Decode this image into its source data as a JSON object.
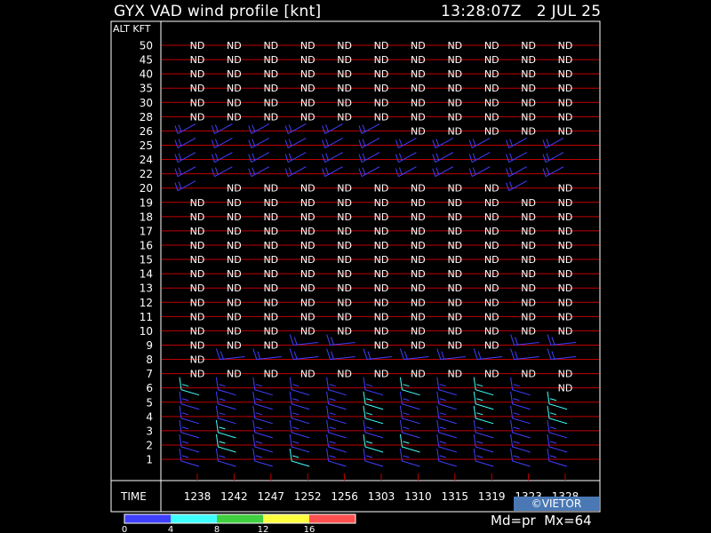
{
  "header": {
    "title": "GYX VAD wind profile [knt]",
    "timestamp": "13:28:07Z   2 JUL 25"
  },
  "footer": {
    "mode_label": "Md=pr  Mx=64",
    "watermark": "©VIETOR"
  },
  "chart_data": {
    "type": "table",
    "ylabel": "ALT KFT",
    "xlabel": "TIME",
    "altitudes": [
      "50",
      "45",
      "40",
      "35",
      "30",
      "28",
      "26",
      "25",
      "24",
      "22",
      "20",
      "19",
      "18",
      "17",
      "16",
      "15",
      "14",
      "13",
      "12",
      "11",
      "10",
      "9",
      "8",
      "7",
      "6",
      "5",
      "4",
      "3",
      "2",
      "1"
    ],
    "times": [
      "1238",
      "1242",
      "1247",
      "1252",
      "1256",
      "1303",
      "1310",
      "1315",
      "1319",
      "1323",
      "1328"
    ],
    "no_data_label": "ND",
    "color_scale": {
      "ticks": [
        "0",
        "4",
        "8",
        "12",
        "16"
      ],
      "colors": [
        "#4040ff",
        "#40ffff",
        "#40d040",
        "#ffff40",
        "#ff5050"
      ]
    },
    "rows": {
      "50": [
        "ND",
        "ND",
        "ND",
        "ND",
        "ND",
        "ND",
        "ND",
        "ND",
        "ND",
        "ND",
        "ND"
      ],
      "45": [
        "ND",
        "ND",
        "ND",
        "ND",
        "ND",
        "ND",
        "ND",
        "ND",
        "ND",
        "ND",
        "ND"
      ],
      "40": [
        "ND",
        "ND",
        "ND",
        "ND",
        "ND",
        "ND",
        "ND",
        "ND",
        "ND",
        "ND",
        "ND"
      ],
      "35": [
        "ND",
        "ND",
        "ND",
        "ND",
        "ND",
        "ND",
        "ND",
        "ND",
        "ND",
        "ND",
        "ND"
      ],
      "30": [
        "ND",
        "ND",
        "ND",
        "ND",
        "ND",
        "ND",
        "ND",
        "ND",
        "ND",
        "ND",
        "ND"
      ],
      "28": [
        "ND",
        "ND",
        "ND",
        "ND",
        "ND",
        "ND",
        "ND",
        "ND",
        "ND",
        "ND",
        "ND"
      ],
      "26": [
        "B",
        "B",
        "B",
        "B",
        "B",
        "B",
        "ND",
        "ND",
        "ND",
        "ND",
        "ND"
      ],
      "25": [
        "B",
        "B",
        "B",
        "B",
        "B",
        "B",
        "B",
        "B",
        "B",
        "B",
        "B"
      ],
      "24": [
        "B",
        "B",
        "B",
        "B",
        "B",
        "B",
        "B",
        "B",
        "B",
        "B",
        "B"
      ],
      "22": [
        "B",
        "B",
        "B",
        "B",
        "B",
        "B",
        "B",
        "B",
        "B",
        "B",
        "B"
      ],
      "20": [
        "B",
        "ND",
        "ND",
        "ND",
        "ND",
        "ND",
        "ND",
        "ND",
        "ND",
        "B",
        "ND"
      ],
      "19": [
        "ND",
        "ND",
        "ND",
        "ND",
        "ND",
        "ND",
        "ND",
        "ND",
        "ND",
        "ND",
        "ND"
      ],
      "18": [
        "ND",
        "ND",
        "ND",
        "ND",
        "ND",
        "ND",
        "ND",
        "ND",
        "ND",
        "ND",
        "ND"
      ],
      "17": [
        "ND",
        "ND",
        "ND",
        "ND",
        "ND",
        "ND",
        "ND",
        "ND",
        "ND",
        "ND",
        "ND"
      ],
      "16": [
        "ND",
        "ND",
        "ND",
        "ND",
        "ND",
        "ND",
        "ND",
        "ND",
        "ND",
        "ND",
        "ND"
      ],
      "15": [
        "ND",
        "ND",
        "ND",
        "ND",
        "ND",
        "ND",
        "ND",
        "ND",
        "ND",
        "ND",
        "ND"
      ],
      "14": [
        "ND",
        "ND",
        "ND",
        "ND",
        "ND",
        "ND",
        "ND",
        "ND",
        "ND",
        "ND",
        "ND"
      ],
      "13": [
        "ND",
        "ND",
        "ND",
        "ND",
        "ND",
        "ND",
        "ND",
        "ND",
        "ND",
        "ND",
        "ND"
      ],
      "12": [
        "ND",
        "ND",
        "ND",
        "ND",
        "ND",
        "ND",
        "ND",
        "ND",
        "ND",
        "ND",
        "ND"
      ],
      "11": [
        "ND",
        "ND",
        "ND",
        "ND",
        "ND",
        "ND",
        "ND",
        "ND",
        "ND",
        "ND",
        "ND"
      ],
      "10": [
        "ND",
        "ND",
        "ND",
        "ND",
        "ND",
        "ND",
        "ND",
        "ND",
        "ND",
        "ND",
        "ND"
      ],
      "9": [
        "ND",
        "ND",
        "ND",
        "B",
        "B",
        "ND",
        "ND",
        "ND",
        "ND",
        "B",
        "B"
      ],
      "8": [
        "ND",
        "B",
        "B",
        "B",
        "B",
        "B",
        "B",
        "B",
        "B",
        "B",
        "B"
      ],
      "7": [
        "ND",
        "ND",
        "ND",
        "ND",
        "ND",
        "ND",
        "ND",
        "ND",
        "ND",
        "ND",
        "ND"
      ],
      "6": [
        "C",
        "B",
        "B",
        "B",
        "B",
        "B",
        "C",
        "B",
        "C",
        "B",
        "ND"
      ],
      "5": [
        "B",
        "B",
        "B",
        "B",
        "B",
        "C",
        "B",
        "B",
        "C",
        "B",
        "C"
      ],
      "4": [
        "B",
        "B",
        "B",
        "B",
        "B",
        "C",
        "B",
        "B",
        "C",
        "B",
        "C"
      ],
      "3": [
        "B",
        "C",
        "B",
        "B",
        "B",
        "B",
        "B",
        "B",
        "B",
        "B",
        "B"
      ],
      "2": [
        "B",
        "C",
        "B",
        "B",
        "B",
        "C",
        "C",
        "B",
        "B",
        "B",
        "B"
      ],
      "1": [
        "B",
        "B",
        "B",
        "C",
        "B",
        "B",
        "B",
        "B",
        "B",
        "B",
        "B"
      ]
    },
    "grid": true
  }
}
